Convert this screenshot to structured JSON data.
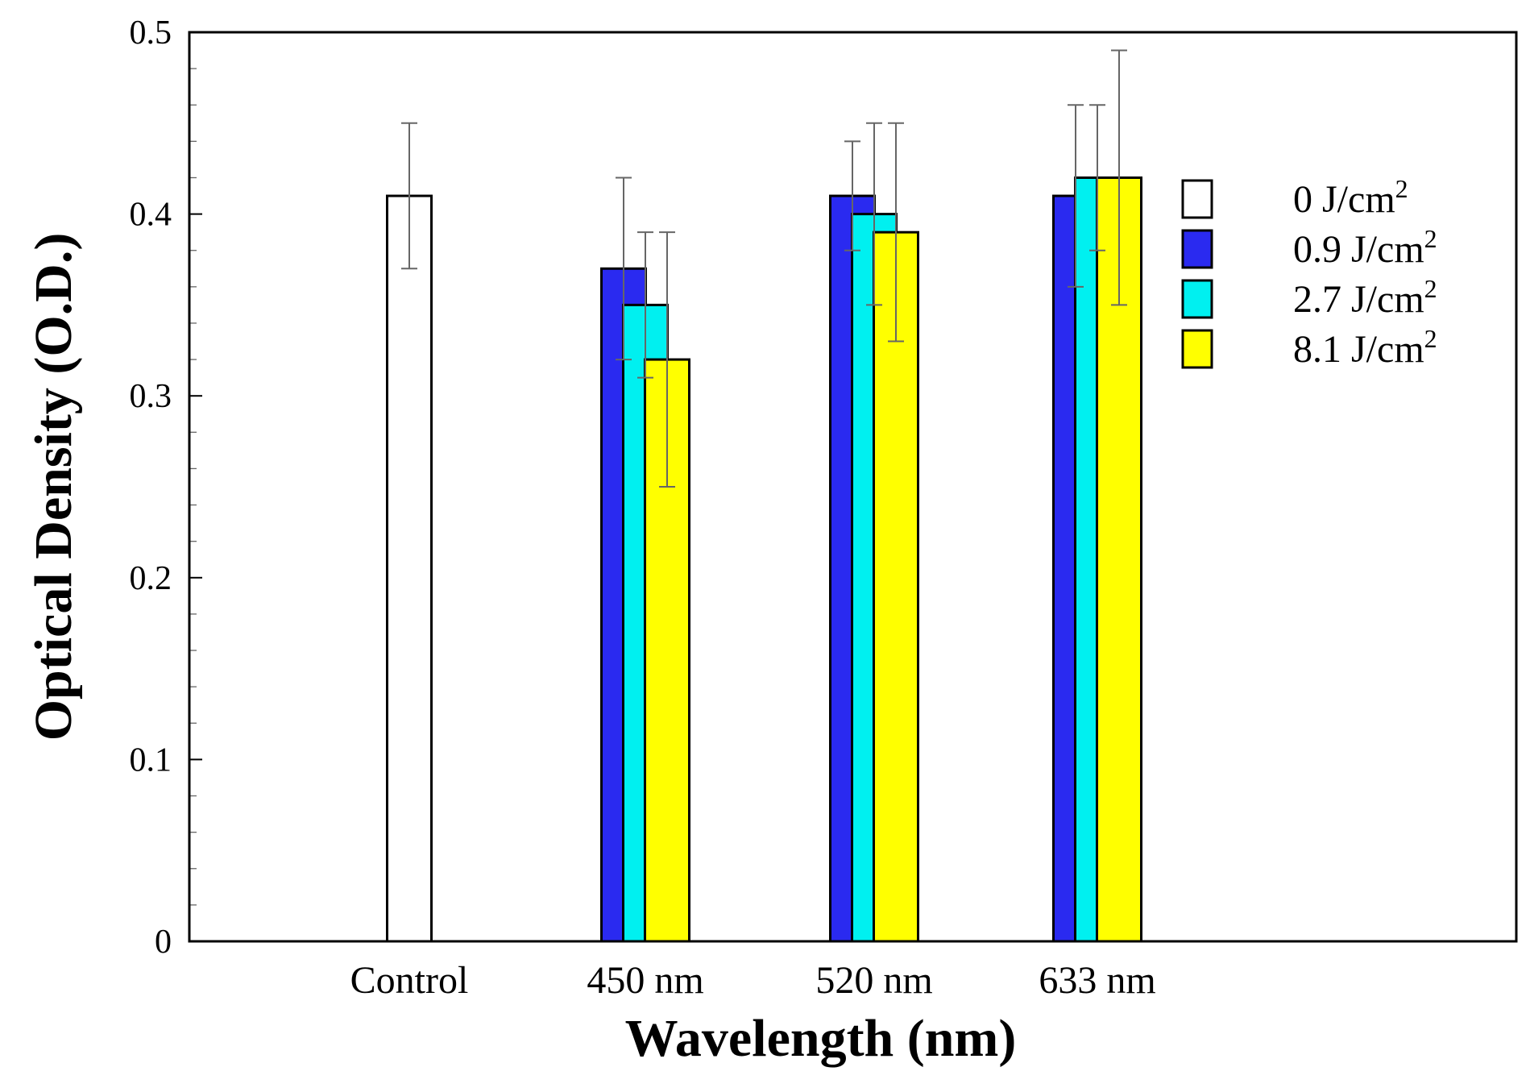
{
  "chart_data": {
    "type": "bar",
    "title": "",
    "xlabel": "Wavelength (nm)",
    "ylabel": "Optical Density (O.D.)",
    "ylim": [
      0,
      0.5
    ],
    "yticks": [
      "0",
      "0.1",
      "0.2",
      "0.3",
      "0.4",
      "0.5"
    ],
    "grid": false,
    "legend_position": "top-right",
    "categories": [
      "Control",
      "450 nm",
      "520 nm",
      "633 nm"
    ],
    "series": [
      {
        "name": "0 J/cm",
        "sup": "2",
        "color": "#ffffff",
        "values": [
          0.41,
          null,
          null,
          null
        ],
        "errors": [
          0.04,
          null,
          null,
          null
        ]
      },
      {
        "name": "0.9 J/cm",
        "sup": "2",
        "color": "#2a2af0",
        "values": [
          null,
          0.37,
          0.41,
          0.41
        ],
        "errors": [
          null,
          0.05,
          0.03,
          0.05
        ]
      },
      {
        "name": "2.7 J/cm",
        "sup": "2",
        "color": "#00f0f0",
        "values": [
          null,
          0.35,
          0.4,
          0.42
        ],
        "errors": [
          null,
          0.04,
          0.05,
          0.04
        ]
      },
      {
        "name": "8.1 J/cm",
        "sup": "2",
        "color": "#ffff00",
        "values": [
          null,
          0.32,
          0.39,
          0.42
        ],
        "errors": [
          null,
          0.07,
          0.06,
          0.07
        ]
      }
    ]
  }
}
